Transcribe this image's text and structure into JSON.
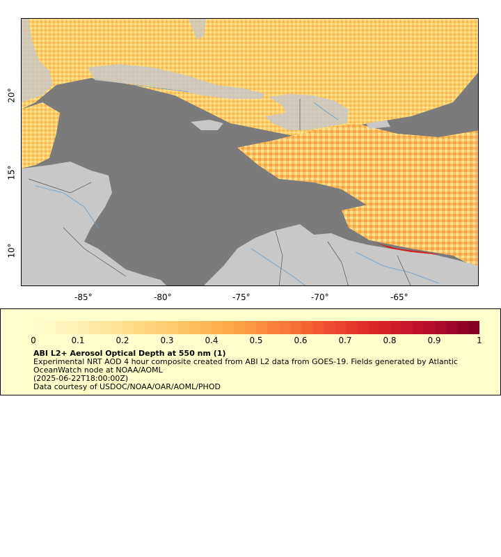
{
  "map": {
    "x_ticks": [
      "-85°",
      "-80°",
      "-75°",
      "-70°",
      "-65°"
    ],
    "y_ticks": [
      "20°",
      "15°",
      "10°"
    ],
    "colors": {
      "ocean": "#7b7b7b",
      "land": "#c8c8c8",
      "rivers": "#6aa0d0",
      "borders": "#555555",
      "aod_low": "#ffdf7a",
      "aod_mid": "#fba84b",
      "aod_high": "#d42020"
    }
  },
  "legend": {
    "ticks": [
      "0",
      "0.1",
      "0.2",
      "0.3",
      "0.4",
      "0.5",
      "0.6",
      "0.7",
      "0.8",
      "0.9",
      "1"
    ],
    "title": "ABI L2+ Aerosol Optical Depth at 550 nm (1)",
    "description": "Experimental NRT AOD 4 hour composite created from ABI L2 data from GOES-19. Fields generated by Atlantic OceanWatch node at NOAA/AOML",
    "timestamp": "(2025-06-22T18:00:00Z)",
    "credit": "Data courtesy of USDOC/NOAA/OAR/AOML/PHOD"
  }
}
